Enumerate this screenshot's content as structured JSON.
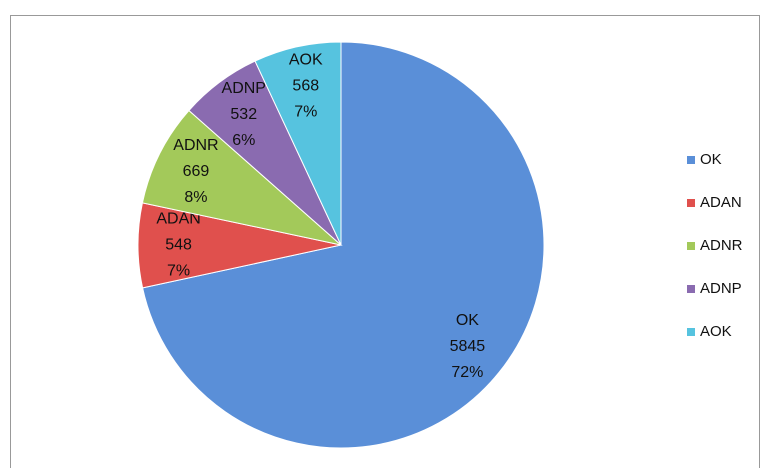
{
  "chart_data": {
    "type": "pie",
    "categories": [
      "OK",
      "ADAN",
      "ADNR",
      "ADNP",
      "AOK"
    ],
    "values": [
      5845,
      548,
      669,
      532,
      568
    ],
    "percent_labels": [
      "72%",
      "7%",
      "8%",
      "6%",
      "7%"
    ],
    "colors": [
      "#5a8fd8",
      "#e0504d",
      "#a3c95a",
      "#8a6bb0",
      "#56c3df"
    ],
    "legend": "right"
  }
}
